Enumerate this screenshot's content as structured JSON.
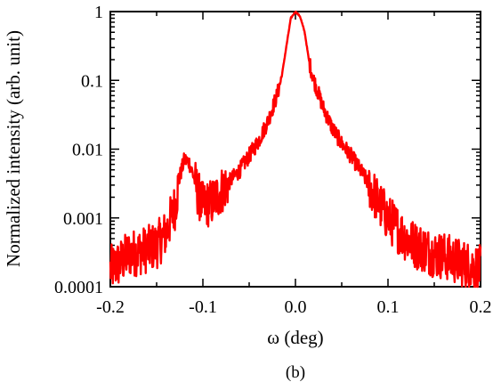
{
  "chart_data": {
    "type": "line",
    "title": "",
    "xlabel": "ω (deg)",
    "ylabel": "Normalized intensity (arb. unit)",
    "caption": "(b)",
    "xlim": [
      -0.2,
      0.2
    ],
    "ylim": [
      0.0001,
      1
    ],
    "yscale": "log",
    "grid": false,
    "legend": "none",
    "x_ticks": [
      -0.2,
      -0.1,
      0.0,
      0.1,
      0.2
    ],
    "x_tick_labels": [
      "-0.2",
      "-0.1",
      "0.0",
      "0.1",
      "0.2"
    ],
    "y_ticks": [
      0.0001,
      0.001,
      0.01,
      0.1,
      1
    ],
    "y_tick_labels": [
      "0.0001",
      "0.001",
      "0.01",
      "0.1",
      "1"
    ],
    "series": [
      {
        "color": "#ff0000",
        "x": [
          -0.2,
          -0.19,
          -0.18,
          -0.17,
          -0.16,
          -0.15,
          -0.14,
          -0.13,
          -0.125,
          -0.12,
          -0.115,
          -0.11,
          -0.105,
          -0.1,
          -0.09,
          -0.08,
          -0.07,
          -0.06,
          -0.05,
          -0.04,
          -0.03,
          -0.02,
          -0.015,
          -0.01,
          -0.005,
          0.0,
          0.005,
          0.01,
          0.015,
          0.02,
          0.03,
          0.04,
          0.05,
          0.06,
          0.07,
          0.08,
          0.09,
          0.1,
          0.11,
          0.12,
          0.13,
          0.14,
          0.15,
          0.16,
          0.17,
          0.18,
          0.19,
          0.2
        ],
        "y": [
          0.00018,
          0.00022,
          0.0003,
          0.00032,
          0.00035,
          0.0004,
          0.0006,
          0.0015,
          0.004,
          0.007,
          0.0065,
          0.004,
          0.0022,
          0.0015,
          0.0017,
          0.0025,
          0.0035,
          0.005,
          0.008,
          0.013,
          0.025,
          0.06,
          0.11,
          0.3,
          0.8,
          1.0,
          0.85,
          0.5,
          0.18,
          0.1,
          0.04,
          0.02,
          0.012,
          0.008,
          0.005,
          0.003,
          0.0016,
          0.001,
          0.0007,
          0.0005,
          0.0004,
          0.00035,
          0.0003,
          0.00028,
          0.00025,
          0.00022,
          0.0002,
          0.00018
        ]
      }
    ]
  }
}
